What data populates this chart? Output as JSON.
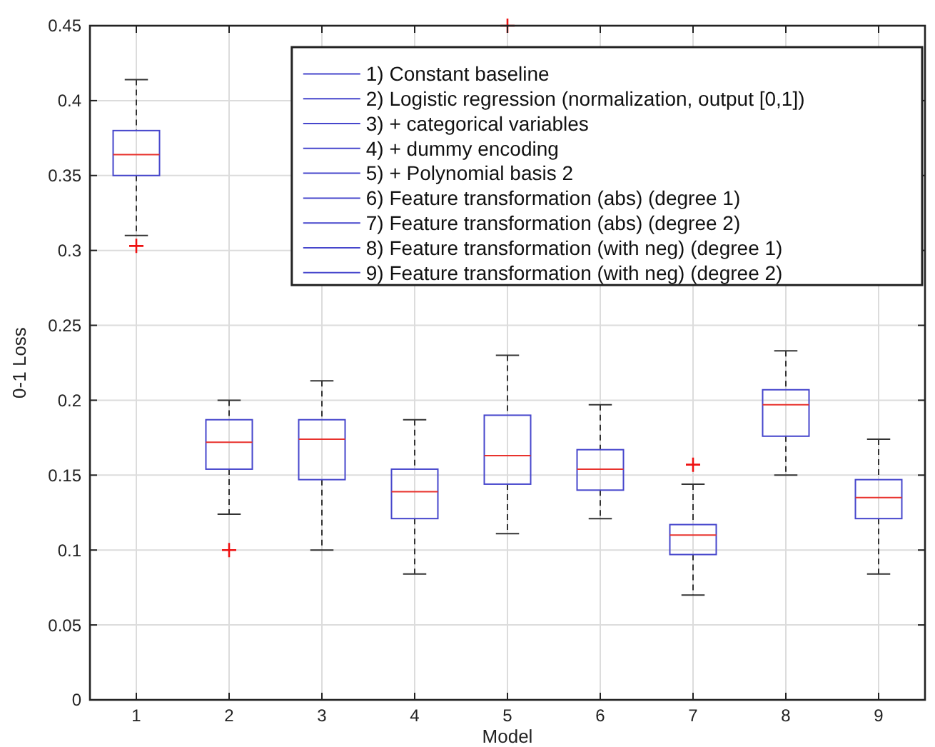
{
  "chart_data": {
    "type": "box",
    "xlabel": "Model",
    "ylabel": "0-1 Loss",
    "categories": [
      "1",
      "2",
      "3",
      "4",
      "5",
      "6",
      "7",
      "8",
      "9"
    ],
    "ylim": [
      0,
      0.45
    ],
    "yticks": [
      0,
      0.05,
      0.1,
      0.15,
      0.2,
      0.25,
      0.3,
      0.35,
      0.4,
      0.45
    ],
    "grid": true,
    "legend": "top right",
    "series": [
      {
        "name": "1) Constant baseline",
        "color": "#4646cc",
        "boxes": [
          {
            "low": 0.31,
            "q1": 0.35,
            "median": 0.364,
            "q3": 0.38,
            "high": 0.414,
            "outliers": [
              0.303
            ]
          },
          null,
          null,
          null,
          null,
          null,
          null,
          null,
          null
        ]
      },
      {
        "name": "2) Logistic regression (normalization, output [0,1])",
        "color": "#4646cc",
        "boxes": [
          null,
          {
            "low": 0.124,
            "q1": 0.154,
            "median": 0.172,
            "q3": 0.187,
            "high": 0.2,
            "outliers": [
              0.1
            ]
          },
          null,
          null,
          null,
          null,
          null,
          null,
          null
        ]
      },
      {
        "name": "3) + categorical variables",
        "color": "#4646cc",
        "boxes": [
          null,
          null,
          {
            "low": 0.1,
            "q1": 0.147,
            "median": 0.174,
            "q3": 0.187,
            "high": 0.213
          },
          null,
          null,
          null,
          null,
          null,
          null
        ]
      },
      {
        "name": "4) + dummy encoding",
        "color": "#4646cc",
        "boxes": [
          null,
          null,
          null,
          {
            "low": 0.084,
            "q1": 0.121,
            "median": 0.139,
            "q3": 0.154,
            "high": 0.187
          },
          null,
          null,
          null,
          null,
          null
        ]
      },
      {
        "name": "5) + Polynomial basis 2",
        "color": "#4646cc",
        "boxes": [
          null,
          null,
          null,
          null,
          {
            "low": 0.111,
            "q1": 0.144,
            "median": 0.163,
            "q3": 0.19,
            "high": 0.23,
            "outliers": [
              0.45
            ]
          },
          null,
          null,
          null,
          null
        ]
      },
      {
        "name": "6) Feature transformation (abs) (degree 1)",
        "color": "#4646cc",
        "boxes": [
          null,
          null,
          null,
          null,
          null,
          {
            "low": 0.121,
            "q1": 0.14,
            "median": 0.154,
            "q3": 0.167,
            "high": 0.197
          },
          null,
          null,
          null
        ]
      },
      {
        "name": "7) Feature transformation (abs) (degree 2)",
        "color": "#4646cc",
        "boxes": [
          null,
          null,
          null,
          null,
          null,
          null,
          {
            "low": 0.07,
            "q1": 0.097,
            "median": 0.11,
            "q3": 0.117,
            "high": 0.144,
            "outliers": [
              0.157
            ]
          },
          null,
          null
        ]
      },
      {
        "name": "8) Feature transformation (with neg) (degree 1)",
        "color": "#4646cc",
        "boxes": [
          null,
          null,
          null,
          null,
          null,
          null,
          null,
          {
            "low": 0.15,
            "q1": 0.176,
            "median": 0.197,
            "q3": 0.207,
            "high": 0.233
          },
          null
        ]
      },
      {
        "name": "9) Feature transformation (with neg) (degree 2)",
        "color": "#4646cc",
        "boxes": [
          null,
          null,
          null,
          null,
          null,
          null,
          null,
          null,
          {
            "low": 0.084,
            "q1": 0.121,
            "median": 0.135,
            "q3": 0.147,
            "high": 0.174
          }
        ]
      }
    ]
  }
}
